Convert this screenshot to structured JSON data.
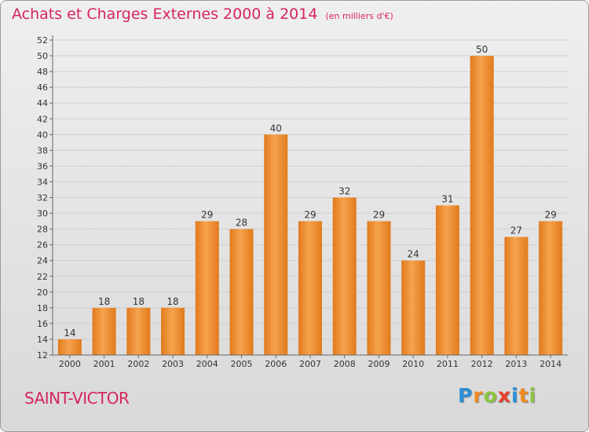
{
  "title": "Achats et Charges Externes 2000 à 2014",
  "unit_note": "(en milliers d'€)",
  "commune": "SAINT-VICTOR",
  "logo": {
    "text": "Proxiti",
    "letters": [
      {
        "char": "P",
        "color": "#2c8fd8"
      },
      {
        "char": "r",
        "color": "#f08a1c"
      },
      {
        "char": "o",
        "color": "#8cc63f"
      },
      {
        "char": "x",
        "color": "#e8402a"
      },
      {
        "char": "i",
        "color": "#2c8fd8"
      },
      {
        "char": "t",
        "color": "#f08a1c"
      },
      {
        "char": "i",
        "color": "#8cc63f"
      }
    ]
  },
  "colors": {
    "title": "#d5265b",
    "bar_light": "#f6a34e",
    "bar_dark": "#e17a1c",
    "grid": "#cfcfcf"
  },
  "chart_data": {
    "type": "bar",
    "title": "Achats et Charges Externes 2000 à 2014",
    "subtitle": "(en milliers d'€)",
    "categories": [
      "2000",
      "2001",
      "2002",
      "2003",
      "2004",
      "2005",
      "2006",
      "2007",
      "2008",
      "2009",
      "2010",
      "2011",
      "2012",
      "2013",
      "2014"
    ],
    "values": [
      14,
      18,
      18,
      18,
      29,
      28,
      40,
      29,
      32,
      29,
      24,
      31,
      50,
      27,
      29
    ],
    "ylim": [
      12,
      52
    ],
    "yticks": [
      12,
      14,
      16,
      18,
      20,
      22,
      24,
      26,
      28,
      30,
      32,
      34,
      36,
      38,
      40,
      42,
      44,
      46,
      48,
      50,
      52
    ],
    "grid": true,
    "data_labels": true
  }
}
